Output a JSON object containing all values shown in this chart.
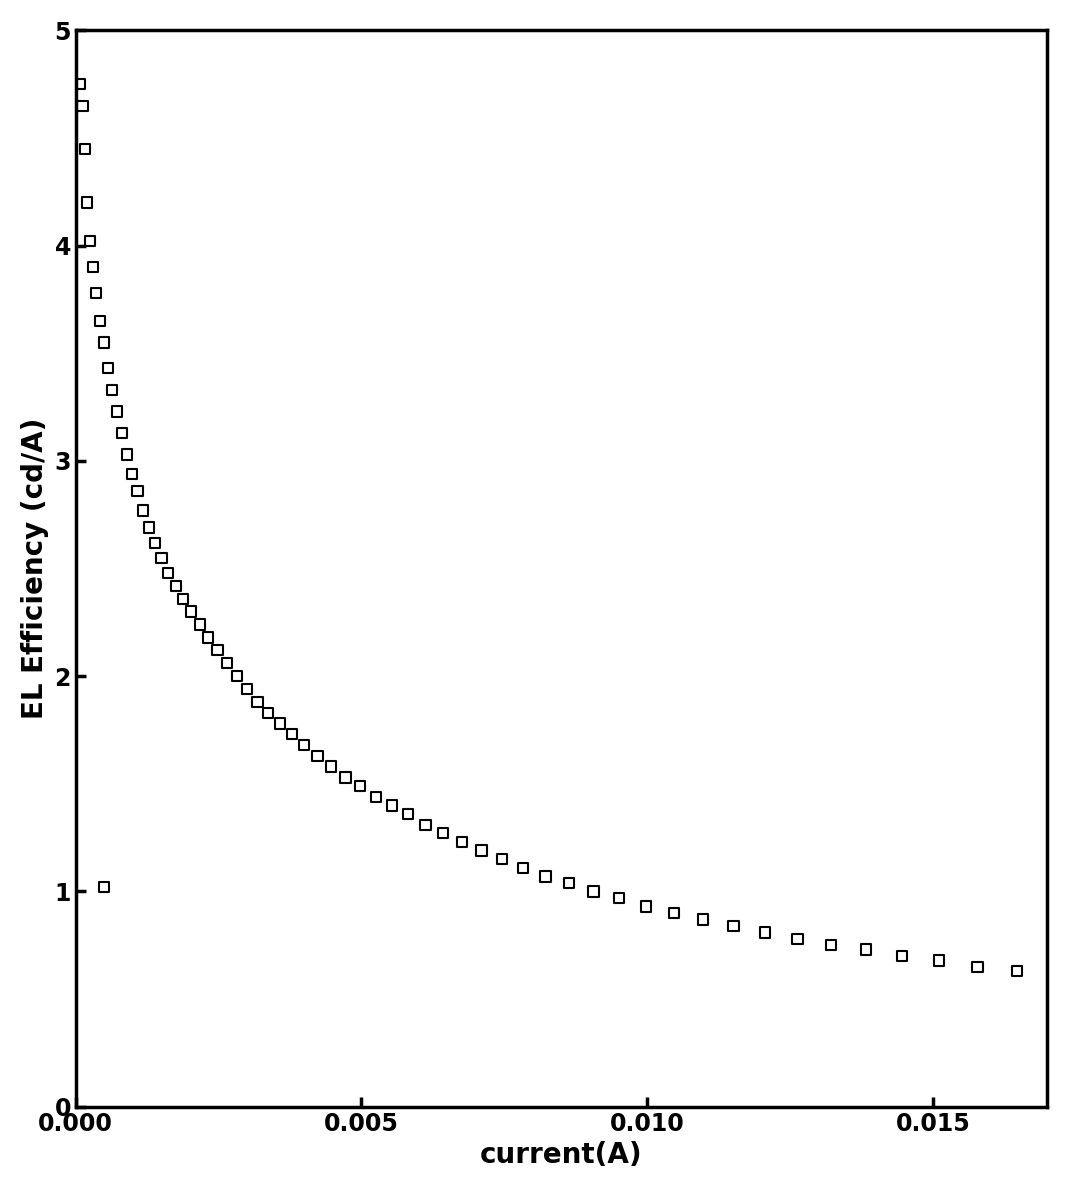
{
  "title": "",
  "xlabel": "current(A)",
  "ylabel": "EL Efficiency (cd/A)",
  "xlim": [
    0,
    0.017
  ],
  "ylim": [
    0,
    5
  ],
  "xticks": [
    0.0,
    0.005,
    0.01,
    0.015
  ],
  "yticks": [
    0,
    1,
    2,
    3,
    4,
    5
  ],
  "x": [
    8e-05,
    0.00012,
    0.00016,
    0.0002,
    0.00025,
    0.0003,
    0.00036,
    0.00042,
    0.00049,
    0.00056,
    0.00064,
    0.00072,
    0.00081,
    0.0009,
    0.00099,
    0.00108,
    0.00118,
    0.00128,
    0.00139,
    0.0015,
    0.00162,
    0.00175,
    0.00188,
    0.00202,
    0.00217,
    0.00232,
    0.00248,
    0.00265,
    0.00282,
    0.003,
    0.00318,
    0.00337,
    0.00357,
    0.00378,
    0.004,
    0.00423,
    0.00447,
    0.00472,
    0.00498,
    0.00525,
    0.00553,
    0.00582,
    0.00612,
    0.00643,
    0.00676,
    0.0071,
    0.00746,
    0.00783,
    0.00822,
    0.00863,
    0.00906,
    0.00951,
    0.00998,
    0.01047,
    0.01098,
    0.01151,
    0.01206,
    0.01263,
    0.01322,
    0.01383,
    0.01446,
    0.01511,
    0.01578,
    0.01647
  ],
  "y": [
    4.75,
    4.65,
    4.45,
    4.2,
    4.02,
    3.9,
    3.78,
    3.65,
    3.55,
    3.43,
    3.33,
    3.23,
    3.13,
    3.03,
    2.94,
    2.86,
    2.77,
    2.69,
    2.62,
    2.55,
    2.48,
    2.42,
    2.36,
    2.3,
    2.24,
    2.18,
    2.12,
    2.06,
    2.0,
    1.94,
    1.88,
    1.83,
    1.78,
    1.73,
    1.68,
    1.63,
    1.58,
    1.53,
    1.49,
    1.44,
    1.4,
    1.36,
    1.31,
    1.27,
    1.23,
    1.19,
    1.15,
    1.11,
    1.07,
    1.04,
    1.0,
    0.97,
    0.93,
    0.9,
    0.87,
    0.84,
    0.81,
    0.78,
    0.75,
    0.73,
    0.7,
    0.68,
    0.65,
    0.63
  ],
  "x_isolated": [
    0.0005
  ],
  "y_isolated": [
    1.02
  ],
  "marker_color": "#000000",
  "marker_size": 55,
  "background_color": "#ffffff",
  "label_fontsize": 20,
  "tick_fontsize": 17
}
